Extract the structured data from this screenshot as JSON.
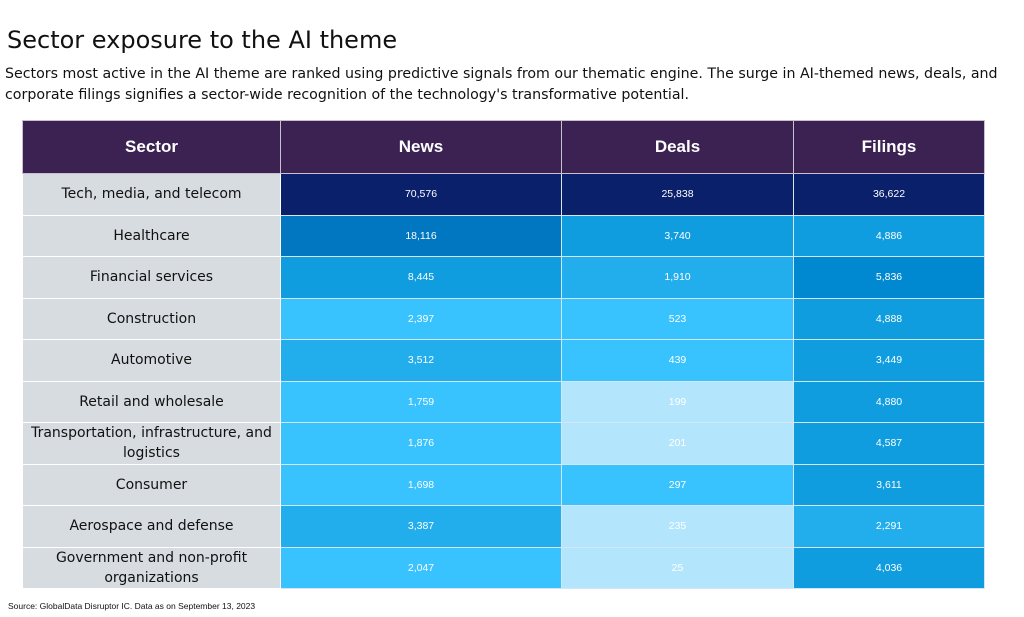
{
  "title": "Sector exposure to the AI theme",
  "subtitle": "Sectors most active in the AI theme are ranked using predictive signals from our thematic engine. The surge in AI-themed news, deals, and corporate filings signifies a sector-wide recognition of the technology's transformative potential.",
  "table": {
    "headers": [
      "Sector",
      "News",
      "Deals",
      "Filings"
    ],
    "rows": [
      {
        "sector": "Tech, media, and telecom",
        "news": "70,576",
        "deals": "25,838",
        "filings": "36,622",
        "colors": [
          "#0a206b",
          "#0a206b",
          "#0a206b"
        ]
      },
      {
        "sector": "Healthcare",
        "news": "18,116",
        "deals": "3,740",
        "filings": "4,886",
        "colors": [
          "#0077c0",
          "#0f9de0",
          "#0f9de0"
        ]
      },
      {
        "sector": "Financial services",
        "news": "8,445",
        "deals": "1,910",
        "filings": "5,836",
        "colors": [
          "#0f9de0",
          "#22aeed",
          "#0088d0"
        ]
      },
      {
        "sector": "Construction",
        "news": "2,397",
        "deals": "523",
        "filings": "4,888",
        "colors": [
          "#38c3ff",
          "#38c3ff",
          "#0f9de0"
        ]
      },
      {
        "sector": "Automotive",
        "news": "3,512",
        "deals": "439",
        "filings": "3,449",
        "colors": [
          "#22aeed",
          "#38c3ff",
          "#0f9de0"
        ]
      },
      {
        "sector": "Retail and wholesale",
        "news": "1,759",
        "deals": "199",
        "filings": "4,880",
        "colors": [
          "#38c3ff",
          "#b3e6fc",
          "#0f9de0"
        ]
      },
      {
        "sector": "Transportation, infrastructure, and logistics",
        "news": "1,876",
        "deals": "201",
        "filings": "4,587",
        "colors": [
          "#38c3ff",
          "#b3e6fc",
          "#0f9de0"
        ]
      },
      {
        "sector": "Consumer",
        "news": "1,698",
        "deals": "297",
        "filings": "3,611",
        "colors": [
          "#38c3ff",
          "#38c3ff",
          "#0f9de0"
        ]
      },
      {
        "sector": "Aerospace and defense",
        "news": "3,387",
        "deals": "235",
        "filings": "2,291",
        "colors": [
          "#22aeed",
          "#b3e6fc",
          "#22aeed"
        ]
      },
      {
        "sector": "Government and non-profit organizations",
        "news": "2,047",
        "deals": "25",
        "filings": "4,036",
        "colors": [
          "#38c3ff",
          "#b3e6fc",
          "#0f9de0"
        ]
      }
    ]
  },
  "source": "Source: GlobalData Disruptor IC. Data as on September 13, 2023"
}
